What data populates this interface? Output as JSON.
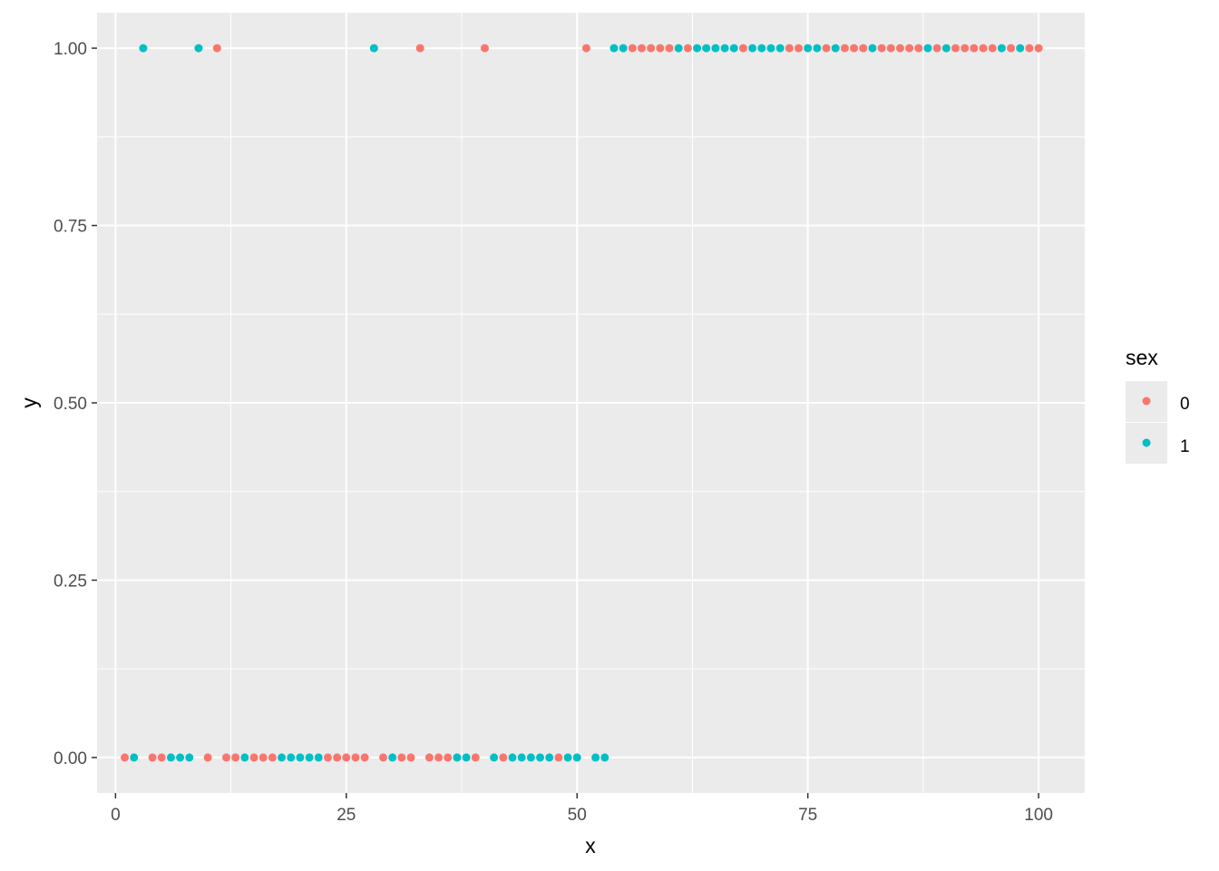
{
  "chart_data": {
    "type": "scatter",
    "title": "",
    "xlabel": "x",
    "ylabel": "y",
    "xlim": [
      -2,
      105
    ],
    "ylim": [
      -0.05,
      1.05
    ],
    "x_ticks": [
      0,
      25,
      50,
      75,
      100
    ],
    "x_tick_labels": [
      "0",
      "25",
      "50",
      "75",
      "100"
    ],
    "y_ticks": [
      0,
      0.25,
      0.5,
      0.75,
      1.0
    ],
    "y_tick_labels": [
      "0.00",
      "0.25",
      "0.50",
      "0.75",
      "1.00"
    ],
    "grid": true,
    "legend": {
      "title": "sex",
      "position": "right"
    },
    "series": [
      {
        "name": "0",
        "color": "#F8766D",
        "x": [
          1,
          4,
          5,
          10,
          12,
          13,
          15,
          16,
          17,
          23,
          24,
          25,
          26,
          27,
          29,
          31,
          32,
          34,
          35,
          36,
          39,
          42,
          48,
          11,
          33,
          40,
          51,
          56,
          57,
          58,
          59,
          60,
          62,
          68,
          73,
          74,
          77,
          79,
          80,
          81,
          83,
          84,
          85,
          86,
          87,
          89,
          91,
          92,
          93,
          94,
          95,
          97,
          99,
          100
        ],
        "y": [
          0,
          0,
          0,
          0,
          0,
          0,
          0,
          0,
          0,
          0,
          0,
          0,
          0,
          0,
          0,
          0,
          0,
          0,
          0,
          0,
          0,
          0,
          0,
          1,
          1,
          1,
          1,
          1,
          1,
          1,
          1,
          1,
          1,
          1,
          1,
          1,
          1,
          1,
          1,
          1,
          1,
          1,
          1,
          1,
          1,
          1,
          1,
          1,
          1,
          1,
          1,
          1,
          1,
          1
        ]
      },
      {
        "name": "1",
        "color": "#00BFC4",
        "x": [
          2,
          6,
          7,
          8,
          14,
          18,
          19,
          20,
          21,
          22,
          30,
          37,
          38,
          41,
          43,
          44,
          45,
          46,
          47,
          49,
          50,
          52,
          53,
          3,
          9,
          28,
          54,
          55,
          61,
          63,
          64,
          65,
          66,
          67,
          69,
          70,
          71,
          72,
          75,
          76,
          78,
          82,
          88,
          90,
          96,
          98
        ],
        "y": [
          0,
          0,
          0,
          0,
          0,
          0,
          0,
          0,
          0,
          0,
          0,
          0,
          0,
          0,
          0,
          0,
          0,
          0,
          0,
          0,
          0,
          0,
          0,
          1,
          1,
          1,
          1,
          1,
          1,
          1,
          1,
          1,
          1,
          1,
          1,
          1,
          1,
          1,
          1,
          1,
          1,
          1,
          1,
          1,
          1,
          1
        ]
      }
    ]
  }
}
